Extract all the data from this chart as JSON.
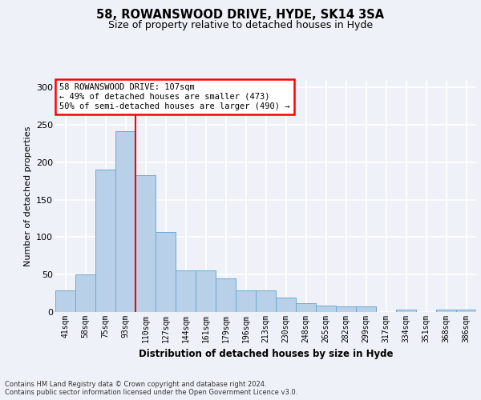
{
  "title1": "58, ROWANSWOOD DRIVE, HYDE, SK14 3SA",
  "title2": "Size of property relative to detached houses in Hyde",
  "xlabel": "Distribution of detached houses by size in Hyde",
  "ylabel": "Number of detached properties",
  "categories": [
    "41sqm",
    "58sqm",
    "75sqm",
    "93sqm",
    "110sqm",
    "127sqm",
    "144sqm",
    "161sqm",
    "179sqm",
    "196sqm",
    "213sqm",
    "230sqm",
    "248sqm",
    "265sqm",
    "282sqm",
    "299sqm",
    "317sqm",
    "334sqm",
    "351sqm",
    "368sqm",
    "386sqm"
  ],
  "values": [
    29,
    50,
    190,
    242,
    183,
    107,
    56,
    56,
    45,
    29,
    29,
    19,
    12,
    9,
    7,
    7,
    0,
    3,
    0,
    3,
    3
  ],
  "bar_color": "#b8d0e8",
  "bar_edge_color": "#6aaad4",
  "vline_color": "red",
  "vline_index": 4,
  "annotation_text": "58 ROWANSWOOD DRIVE: 107sqm\n← 49% of detached houses are smaller (473)\n50% of semi-detached houses are larger (490) →",
  "annotation_box_color": "white",
  "annotation_box_edge_color": "red",
  "ylim": [
    0,
    310
  ],
  "yticks": [
    0,
    50,
    100,
    150,
    200,
    250,
    300
  ],
  "footer_text": "Contains HM Land Registry data © Crown copyright and database right 2024.\nContains public sector information licensed under the Open Government Licence v3.0.",
  "background_color": "#eef2f8",
  "grid_color": "white"
}
